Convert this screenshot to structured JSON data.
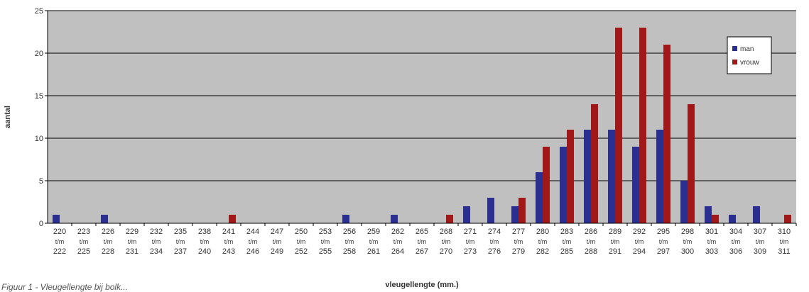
{
  "chart_data": {
    "type": "bar",
    "title": "",
    "xlabel": "vleugellengte (mm.)",
    "ylabel": "aantal",
    "ylim": [
      0,
      25
    ],
    "yticks": [
      0,
      5,
      10,
      15,
      20,
      25
    ],
    "grid": true,
    "legend_position": "top-right",
    "categories": [
      [
        "220",
        "t/m",
        "222"
      ],
      [
        "223",
        "t/m",
        "225"
      ],
      [
        "226",
        "t/m",
        "228"
      ],
      [
        "229",
        "t/m",
        "231"
      ],
      [
        "232",
        "t/m",
        "234"
      ],
      [
        "235",
        "t/m",
        "237"
      ],
      [
        "238",
        "t/m",
        "240"
      ],
      [
        "241",
        "t/m",
        "243"
      ],
      [
        "244",
        "t/m",
        "246"
      ],
      [
        "247",
        "t/m",
        "249"
      ],
      [
        "250",
        "t/m",
        "252"
      ],
      [
        "253",
        "t/m",
        "255"
      ],
      [
        "256",
        "t/m",
        "258"
      ],
      [
        "259",
        "t/m",
        "261"
      ],
      [
        "262",
        "t/m",
        "264"
      ],
      [
        "265",
        "t/m",
        "267"
      ],
      [
        "268",
        "t/m",
        "270"
      ],
      [
        "271",
        "t/m",
        "273"
      ],
      [
        "274",
        "t/m",
        "276"
      ],
      [
        "277",
        "t/m",
        "279"
      ],
      [
        "280",
        "t/m",
        "282"
      ],
      [
        "283",
        "t/m",
        "285"
      ],
      [
        "286",
        "t/m",
        "288"
      ],
      [
        "289",
        "t/m",
        "291"
      ],
      [
        "292",
        "t/m",
        "294"
      ],
      [
        "295",
        "t/m",
        "297"
      ],
      [
        "298",
        "t/m",
        "300"
      ],
      [
        "301",
        "t/m",
        "303"
      ],
      [
        "304",
        "t/m",
        "306"
      ],
      [
        "307",
        "t/m",
        "309"
      ],
      [
        "310",
        "t/m",
        "311"
      ]
    ],
    "series": [
      {
        "name": "man",
        "color": "#2b2f8f",
        "values": [
          1,
          0,
          1,
          0,
          0,
          0,
          0,
          0,
          0,
          0,
          0,
          0,
          1,
          0,
          1,
          0,
          0,
          2,
          3,
          2,
          6,
          9,
          11,
          11,
          9,
          11,
          5,
          2,
          1,
          2,
          0
        ]
      },
      {
        "name": "vrouw",
        "color": "#a01818",
        "values": [
          0,
          0,
          0,
          0,
          0,
          0,
          0,
          1,
          0,
          0,
          0,
          0,
          0,
          0,
          0,
          0,
          1,
          0,
          0,
          3,
          9,
          11,
          14,
          23,
          23,
          21,
          14,
          1,
          0,
          0,
          1
        ]
      }
    ],
    "colors": {
      "plot_background": "#c0c0c0",
      "gridline": "#000000",
      "legend_background": "#ffffff"
    }
  },
  "caption": "Figuur 1 - Vleugellengte bij bolk..."
}
